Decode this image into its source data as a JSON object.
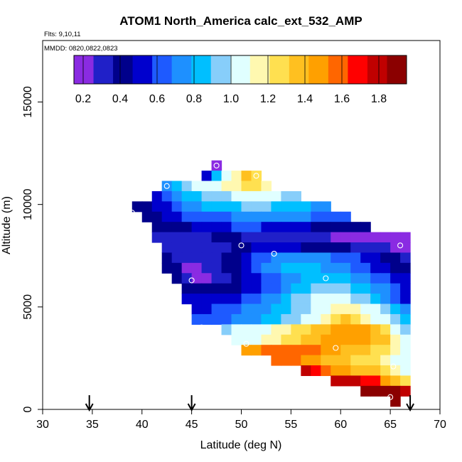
{
  "chart_data": {
    "type": "heatmap",
    "title": "ATOM1 North_America calc_ext_532_AMP",
    "annotations": [
      "Flts: 9,10,11",
      "MMDD: 0820,0822,0823"
    ],
    "xlabel": "Latitude (deg N)",
    "ylabel": "Altitude (m)",
    "xlim": [
      30,
      70
    ],
    "ylim": [
      0,
      18000
    ],
    "x_ticks": [
      "30",
      "35",
      "40",
      "45",
      "50",
      "55",
      "60",
      "65",
      "70"
    ],
    "y_ticks": [
      "0",
      "5000",
      "10000",
      "15000"
    ],
    "colorbar": {
      "range": [
        0.15,
        1.95
      ],
      "tick_values": [
        0.2,
        0.4,
        0.6,
        0.8,
        1.0,
        1.2,
        1.4,
        1.6,
        1.8
      ],
      "tick_labels": [
        "0.2",
        "0.4",
        "0.6",
        "0.8",
        "1.0",
        "1.2",
        "1.4",
        "1.6",
        "1.8"
      ],
      "colors": [
        "#8a2be2",
        "#2020c8",
        "#00008b",
        "#0000cd",
        "#1e5aff",
        "#1e90ff",
        "#00bfff",
        "#87cefa",
        "#e0ffff",
        "#fff8b0",
        "#ffe050",
        "#ffc020",
        "#ffa000",
        "#ff6600",
        "#ff0000",
        "#c00000",
        "#8b0000"
      ]
    },
    "flight_markers_lat": [
      34.7,
      45.0,
      67.0
    ],
    "rows": [
      {
        "alt": 11900,
        "lat0": 47.0,
        "values": [
          0.15
        ]
      },
      {
        "alt": 11400,
        "lat0": 46.0,
        "values": [
          0.55,
          0.85,
          1.0,
          1.2,
          1.35,
          1.3
        ]
      },
      {
        "alt": 10900,
        "lat0": 42.0,
        "values": [
          0.7,
          0.85,
          0.95,
          1.0,
          1.05,
          1.1,
          1.15,
          1.2,
          1.25,
          1.25,
          1.2
        ]
      },
      {
        "alt": 10400,
        "lat0": 41.0,
        "values": [
          0.5,
          0.6,
          0.7,
          0.8,
          0.85,
          0.9,
          0.95,
          0.95,
          1.0,
          1.0,
          1.0,
          1.0,
          1.0,
          0.95,
          0.9
        ]
      },
      {
        "alt": 9900,
        "lat0": 39.0,
        "values": [
          0.4,
          0.45,
          0.5,
          0.55,
          0.6,
          0.7,
          0.75,
          0.8,
          0.8,
          0.85,
          0.85,
          0.9,
          0.9,
          0.9,
          0.85,
          0.85,
          0.8,
          0.8,
          0.75,
          0.75
        ]
      },
      {
        "alt": 9400,
        "lat0": 40.0,
        "values": [
          0.4,
          0.45,
          0.5,
          0.55,
          0.6,
          0.6,
          0.6,
          0.65,
          0.65,
          0.7,
          0.7,
          0.75,
          0.75,
          0.75,
          0.75,
          0.7,
          0.7,
          0.65,
          0.65,
          0.6,
          0.6
        ]
      },
      {
        "alt": 8900,
        "lat0": 41.0,
        "values": [
          0.4,
          0.4,
          0.45,
          0.45,
          0.5,
          0.5,
          0.55,
          0.55,
          0.6,
          0.6,
          0.6,
          0.55,
          0.55,
          0.5,
          0.5,
          0.5,
          0.45,
          0.45,
          0.45,
          0.4,
          0.4,
          0.4
        ]
      },
      {
        "alt": 8400,
        "lat0": 41.0,
        "values": [
          0.3,
          0.3,
          0.35,
          0.35,
          0.35,
          0.35,
          0.4,
          0.4,
          0.4,
          0.35,
          0.35,
          0.35,
          0.3,
          0.3,
          0.3,
          0.3,
          0.3,
          0.3,
          0.25,
          0.25,
          0.25,
          0.2,
          0.2,
          0.2,
          0.15,
          0.15
        ]
      },
      {
        "alt": 7900,
        "lat0": 42.0,
        "values": [
          0.35,
          0.3,
          0.3,
          0.3,
          0.3,
          0.35,
          0.35,
          0.4,
          0.45,
          0.5,
          0.55,
          0.55,
          0.5,
          0.5,
          0.45,
          0.45,
          0.4,
          0.4,
          0.4,
          0.35,
          0.35,
          0.3,
          0.3,
          0.25,
          0.2
        ]
      },
      {
        "alt": 7400,
        "lat0": 42.0,
        "values": [
          0.4,
          0.35,
          0.35,
          0.3,
          0.3,
          0.35,
          0.4,
          0.45,
          0.5,
          0.6,
          0.65,
          0.7,
          0.75,
          0.75,
          0.75,
          0.7,
          0.7,
          0.65,
          0.6,
          0.6,
          0.55,
          0.5,
          0.45,
          0.4,
          0.35
        ]
      },
      {
        "alt": 6900,
        "lat0": 42.0,
        "values": [
          0.4,
          0.4,
          0.25,
          0.2,
          0.3,
          0.35,
          0.4,
          0.45,
          0.5,
          0.6,
          0.7,
          0.75,
          0.8,
          0.8,
          0.8,
          0.8,
          0.75,
          0.75,
          0.7,
          0.65,
          0.6,
          0.55,
          0.5,
          0.45,
          0.4
        ]
      },
      {
        "alt": 6400,
        "lat0": 43.0,
        "values": [
          0.45,
          0.3,
          0.15,
          0.2,
          0.3,
          0.35,
          0.4,
          0.5,
          0.55,
          0.6,
          0.65,
          0.7,
          0.75,
          0.8,
          0.85,
          0.85,
          0.85,
          0.8,
          0.75,
          0.7,
          0.65,
          0.6,
          0.55,
          0.5
        ]
      },
      {
        "alt": 5900,
        "lat0": 44.0,
        "values": [
          0.45,
          0.45,
          0.4,
          0.4,
          0.4,
          0.45,
          0.5,
          0.55,
          0.6,
          0.65,
          0.75,
          0.8,
          0.85,
          0.9,
          0.95,
          0.95,
          0.9,
          0.85,
          0.8,
          0.75,
          0.7,
          0.6,
          0.5
        ]
      },
      {
        "alt": 5400,
        "lat0": 44.0,
        "values": [
          0.55,
          0.5,
          0.5,
          0.5,
          0.5,
          0.55,
          0.6,
          0.65,
          0.7,
          0.75,
          0.85,
          0.9,
          0.95,
          1.0,
          1.05,
          1.05,
          1.0,
          0.95,
          0.9,
          0.85,
          0.75,
          0.65,
          0.55
        ]
      },
      {
        "alt": 4900,
        "lat0": 45.0,
        "values": [
          0.55,
          0.55,
          0.6,
          0.6,
          0.65,
          0.7,
          0.7,
          0.75,
          0.8,
          0.85,
          0.9,
          0.95,
          1.0,
          1.1,
          1.15,
          1.2,
          1.15,
          1.05,
          1.0,
          0.9,
          0.8,
          0.7
        ]
      },
      {
        "alt": 4400,
        "lat0": 45.0,
        "values": [
          0.6,
          0.6,
          0.65,
          0.65,
          0.7,
          0.7,
          0.75,
          0.8,
          0.85,
          0.9,
          0.95,
          1.0,
          1.1,
          1.2,
          1.3,
          1.35,
          1.3,
          1.2,
          1.1,
          1.0,
          0.9,
          0.8
        ]
      },
      {
        "alt": 3900,
        "lat0": 48.0,
        "values": [
          0.95,
          1.0,
          1.0,
          1.05,
          1.1,
          1.15,
          1.2,
          1.25,
          1.3,
          1.35,
          1.4,
          1.45,
          1.5,
          1.5,
          1.45,
          1.4,
          1.3,
          1.1,
          0.9
        ]
      },
      {
        "alt": 3400,
        "lat0": 49.0,
        "values": [
          1.0,
          1.05,
          1.1,
          1.15,
          1.2,
          1.25,
          1.3,
          1.35,
          1.4,
          1.45,
          1.5,
          1.5,
          1.5,
          1.45,
          1.4,
          1.35,
          1.2,
          1.0
        ]
      },
      {
        "alt": 2900,
        "lat0": 50.0,
        "values": [
          1.5,
          1.5,
          1.55,
          1.55,
          1.6,
          1.6,
          1.6,
          1.55,
          1.5,
          1.45,
          1.4,
          1.4,
          1.35,
          1.3,
          1.25,
          1.2,
          1.05
        ]
      },
      {
        "alt": 2400,
        "lat0": 53.0,
        "values": [
          1.6,
          1.6,
          1.55,
          1.5,
          1.45,
          1.4,
          1.4,
          1.35,
          1.3,
          1.3,
          1.3,
          1.2,
          1.1,
          1.0
        ]
      },
      {
        "alt": 1900,
        "lat0": 56.0,
        "values": [
          1.8,
          1.65,
          1.55,
          1.5,
          1.45,
          1.4,
          1.4,
          1.35,
          1.3,
          1.2,
          1.1
        ]
      },
      {
        "alt": 1400,
        "lat0": 59.0,
        "values": [
          1.75,
          1.8,
          1.75,
          1.7,
          1.65,
          1.5,
          1.35,
          1.3
        ]
      },
      {
        "alt": 900,
        "lat0": 62.0,
        "values": [
          1.9,
          1.9,
          1.9,
          1.85,
          1.8
        ]
      },
      {
        "alt": 400,
        "lat0": 65.0,
        "values": [
          1.95
        ]
      }
    ],
    "sample_points": [
      [
        47.5,
        11900
      ],
      [
        51.5,
        11400
      ],
      [
        42.5,
        10900
      ],
      [
        39.0,
        9600
      ],
      [
        50.0,
        8000
      ],
      [
        53.3,
        7600
      ],
      [
        66.0,
        8000
      ],
      [
        45.0,
        6300
      ],
      [
        58.5,
        6400
      ],
      [
        46.0,
        4000
      ],
      [
        50.5,
        3200
      ],
      [
        59.5,
        3000
      ],
      [
        65.3,
        2100
      ],
      [
        65.0,
        600
      ]
    ]
  }
}
